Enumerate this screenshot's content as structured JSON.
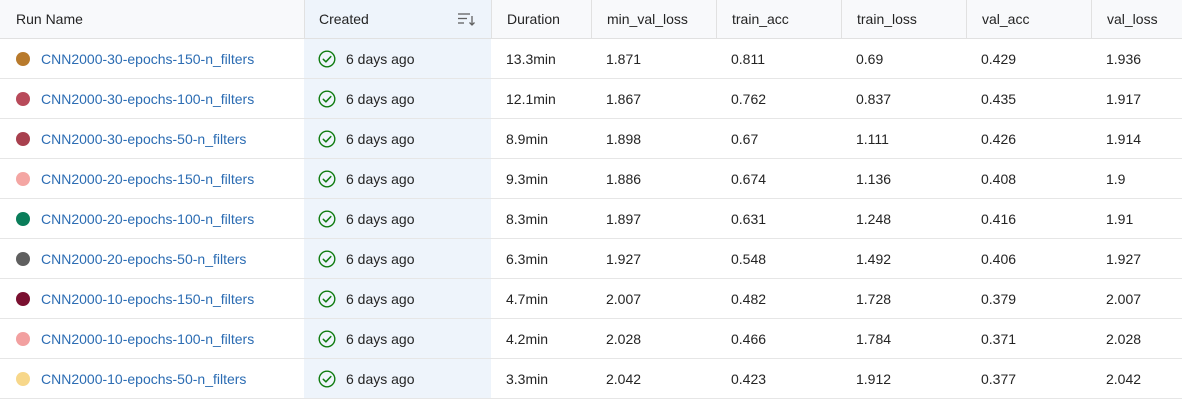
{
  "columns": {
    "run_name": "Run Name",
    "created": "Created",
    "duration": "Duration",
    "min_val_loss": "min_val_loss",
    "train_acc": "train_acc",
    "train_loss": "train_loss",
    "val_acc": "val_acc",
    "val_loss": "val_loss"
  },
  "rows": [
    {
      "name": "CNN2000-30-epochs-150-n_filters",
      "color": "#b87a2c",
      "created": "6 days ago",
      "duration": "13.3min",
      "min_val_loss": "1.871",
      "train_acc": "0.811",
      "train_loss": "0.69",
      "val_acc": "0.429",
      "val_loss": "1.936"
    },
    {
      "name": "CNN2000-30-epochs-100-n_filters",
      "color": "#b84a5a",
      "created": "6 days ago",
      "duration": "12.1min",
      "min_val_loss": "1.867",
      "train_acc": "0.762",
      "train_loss": "0.837",
      "val_acc": "0.435",
      "val_loss": "1.917"
    },
    {
      "name": "CNN2000-30-epochs-50-n_filters",
      "color": "#a8404e",
      "created": "6 days ago",
      "duration": "8.9min",
      "min_val_loss": "1.898",
      "train_acc": "0.67",
      "train_loss": "1.111",
      "val_acc": "0.426",
      "val_loss": "1.914"
    },
    {
      "name": "CNN2000-20-epochs-150-n_filters",
      "color": "#f4a6a3",
      "created": "6 days ago",
      "duration": "9.3min",
      "min_val_loss": "1.886",
      "train_acc": "0.674",
      "train_loss": "1.136",
      "val_acc": "0.408",
      "val_loss": "1.9"
    },
    {
      "name": "CNN2000-20-epochs-100-n_filters",
      "color": "#0a7d5a",
      "created": "6 days ago",
      "duration": "8.3min",
      "min_val_loss": "1.897",
      "train_acc": "0.631",
      "train_loss": "1.248",
      "val_acc": "0.416",
      "val_loss": "1.91"
    },
    {
      "name": "CNN2000-20-epochs-50-n_filters",
      "color": "#5f5f5f",
      "created": "6 days ago",
      "duration": "6.3min",
      "min_val_loss": "1.927",
      "train_acc": "0.548",
      "train_loss": "1.492",
      "val_acc": "0.406",
      "val_loss": "1.927"
    },
    {
      "name": "CNN2000-10-epochs-150-n_filters",
      "color": "#7a1030",
      "created": "6 days ago",
      "duration": "4.7min",
      "min_val_loss": "2.007",
      "train_acc": "0.482",
      "train_loss": "1.728",
      "val_acc": "0.379",
      "val_loss": "2.007"
    },
    {
      "name": "CNN2000-10-epochs-100-n_filters",
      "color": "#f2a0a0",
      "created": "6 days ago",
      "duration": "4.2min",
      "min_val_loss": "2.028",
      "train_acc": "0.466",
      "train_loss": "1.784",
      "val_acc": "0.371",
      "val_loss": "2.028"
    },
    {
      "name": "CNN2000-10-epochs-50-n_filters",
      "color": "#f7d78a",
      "created": "6 days ago",
      "duration": "3.3min",
      "min_val_loss": "2.042",
      "train_acc": "0.423",
      "train_loss": "1.912",
      "val_acc": "0.377",
      "val_loss": "2.042"
    }
  ],
  "icons": {
    "status": "check-circle-icon",
    "sort": "sort-descending-icon"
  },
  "colors": {
    "link": "#2b6cb3",
    "status_ok": "#107c10",
    "created_column_bg": "#eef4fb"
  }
}
